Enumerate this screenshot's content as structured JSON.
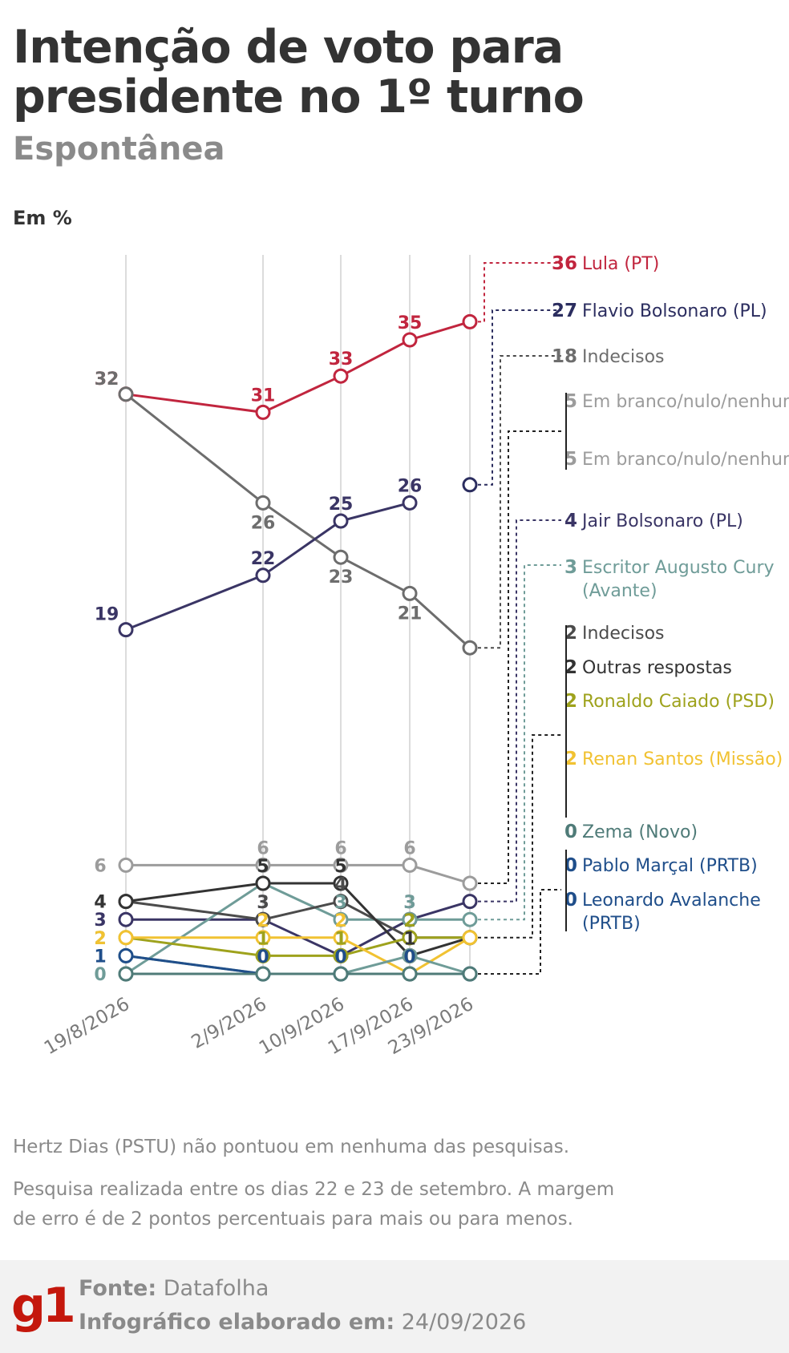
{
  "header": {
    "title": "Intenção de voto para presidente no 1º turno",
    "subtitle": "Espontânea",
    "unit": "Em %"
  },
  "colors": {
    "lula": "#c1253e",
    "flavio": "#2b2d5f",
    "indecisos": "#6d6d6d",
    "branco": "#9c9c9c",
    "jair": "#3a3565",
    "cury": "#6f9c98",
    "outras": "#4b4b4b",
    "caiado": "#9ea21c",
    "renan": "#f1c232",
    "zema": "#4f7b78",
    "marcal": "#1f4e8a",
    "avalanche": "#5b6e8c",
    "grid": "#dcdcdc"
  },
  "chart_data": {
    "type": "line",
    "unit": "Em %",
    "x": [
      "19/8/2026",
      "2/9/2026",
      "10/9/2026",
      "17/9/2026",
      "23/9/2026"
    ],
    "series": [
      {
        "name": "Lula (PT)",
        "values": [
          32,
          31,
          33,
          35,
          36
        ],
        "color": "#c1253e",
        "showLabels": true
      },
      {
        "name": "Flavio Bolsonaro (PL)",
        "values": [
          null,
          null,
          null,
          null,
          27
        ],
        "color": "#2b2d5f",
        "showLabels": false
      },
      {
        "name": "Indecisos",
        "values": [
          32,
          26,
          23,
          21,
          18
        ],
        "color": "#6d6d6d",
        "showLabels": true
      },
      {
        "name": "Em branco/nulo/nenhum",
        "values": [
          19,
          22,
          25,
          26,
          null
        ],
        "color": "#3a3565",
        "showLabels": true
      },
      {
        "name": "Em branco/nulo/nenhum",
        "values": [
          6,
          6,
          6,
          6,
          5
        ],
        "color": "#9c9c9c",
        "showLabels": true
      },
      {
        "name": "Jair Bolsonaro (PL)",
        "values": [
          3,
          3,
          1,
          3,
          4
        ],
        "color": "#3a3565",
        "showLabels": true
      },
      {
        "name": "Escritor Augusto Cury (Avante)",
        "values": [
          0,
          5,
          3,
          3,
          3
        ],
        "color": "#6f9c98",
        "showLabels": true
      },
      {
        "name": "Outras respostas",
        "values": [
          4,
          3,
          4,
          2,
          2
        ],
        "color": "#4b4b4b",
        "showLabels": true
      },
      {
        "name": "Indecisos",
        "values": [
          4,
          5,
          5,
          1,
          2
        ],
        "color": "#333333",
        "showLabels": true
      },
      {
        "name": "Ronaldo Caiado (PSD)",
        "values": [
          2,
          1,
          1,
          2,
          2
        ],
        "color": "#9ea21c",
        "showLabels": true
      },
      {
        "name": "Renan Santos (Missão)",
        "values": [
          2,
          2,
          2,
          0,
          2
        ],
        "color": "#f1c232",
        "showLabels": true
      },
      {
        "name": "Zema (Novo)",
        "values": [
          1,
          0,
          0,
          1,
          0
        ],
        "color": "#6f9c98",
        "showLabels": false
      },
      {
        "name": "Pablo Marçal (PRTB)",
        "values": [
          1,
          0,
          0,
          0,
          0
        ],
        "color": "#1f4e8a",
        "showLabels": true
      },
      {
        "name": "Leonardo Avalanche (PRTB)",
        "values": [
          0,
          0,
          0,
          0,
          0
        ],
        "color": "#4f7b78",
        "showLabels": false
      }
    ],
    "ylim": [
      0,
      37
    ],
    "legend": [
      {
        "value": "36",
        "label": "Lula (PT)",
        "color": "#c1253e"
      },
      {
        "value": "27",
        "label": "Flavio Bolsonaro (PL)",
        "color": "#2b2d5f"
      },
      {
        "value": "18",
        "label": "Indecisos",
        "color": "#6d6d6d"
      },
      {
        "value": "5",
        "label": "Em branco/nulo/nenhum",
        "color": "#9c9c9c"
      },
      {
        "value": "5",
        "label": "Em branco/nulo/nenhum",
        "color": "#9c9c9c"
      },
      {
        "value": "4",
        "label": "Jair Bolsonaro (PL)",
        "color": "#3a3565"
      },
      {
        "value": "3",
        "label": "Escritor Augusto Cury (Avante)",
        "color": "#6f9c98"
      },
      {
        "value": "2",
        "label": "Indecisos",
        "color": "#4b4b4b"
      },
      {
        "value": "2",
        "label": "Outras respostas",
        "color": "#333333"
      },
      {
        "value": "2",
        "label": "Ronaldo Caiado (PSD)",
        "color": "#9ea21c"
      },
      {
        "value": "2",
        "label": "Renan Santos (Missão)",
        "color": "#f1c232"
      },
      {
        "value": "0",
        "label": "Zema (Novo)",
        "color": "#4f7b78"
      },
      {
        "value": "0",
        "label": "Pablo Marçal (PRTB)",
        "color": "#1f4e8a"
      },
      {
        "value": "0",
        "label": "Leonardo Avalanche (PRTB)",
        "color": "#1f4e8a"
      }
    ]
  },
  "notes": {
    "line1": "Hertz Dias (PSTU) não pontuou em nenhuma das pesquisas.",
    "line2": "Pesquisa realizada entre os dias 22 e 23 de setembro. A margem de erro é de 2 pontos percentuais para mais ou para menos."
  },
  "footer": {
    "logo": "g1",
    "source_label": "Fonte:",
    "source": "Datafolha",
    "date_label": "Infográfico elaborado em:",
    "date": "24/09/2026"
  }
}
